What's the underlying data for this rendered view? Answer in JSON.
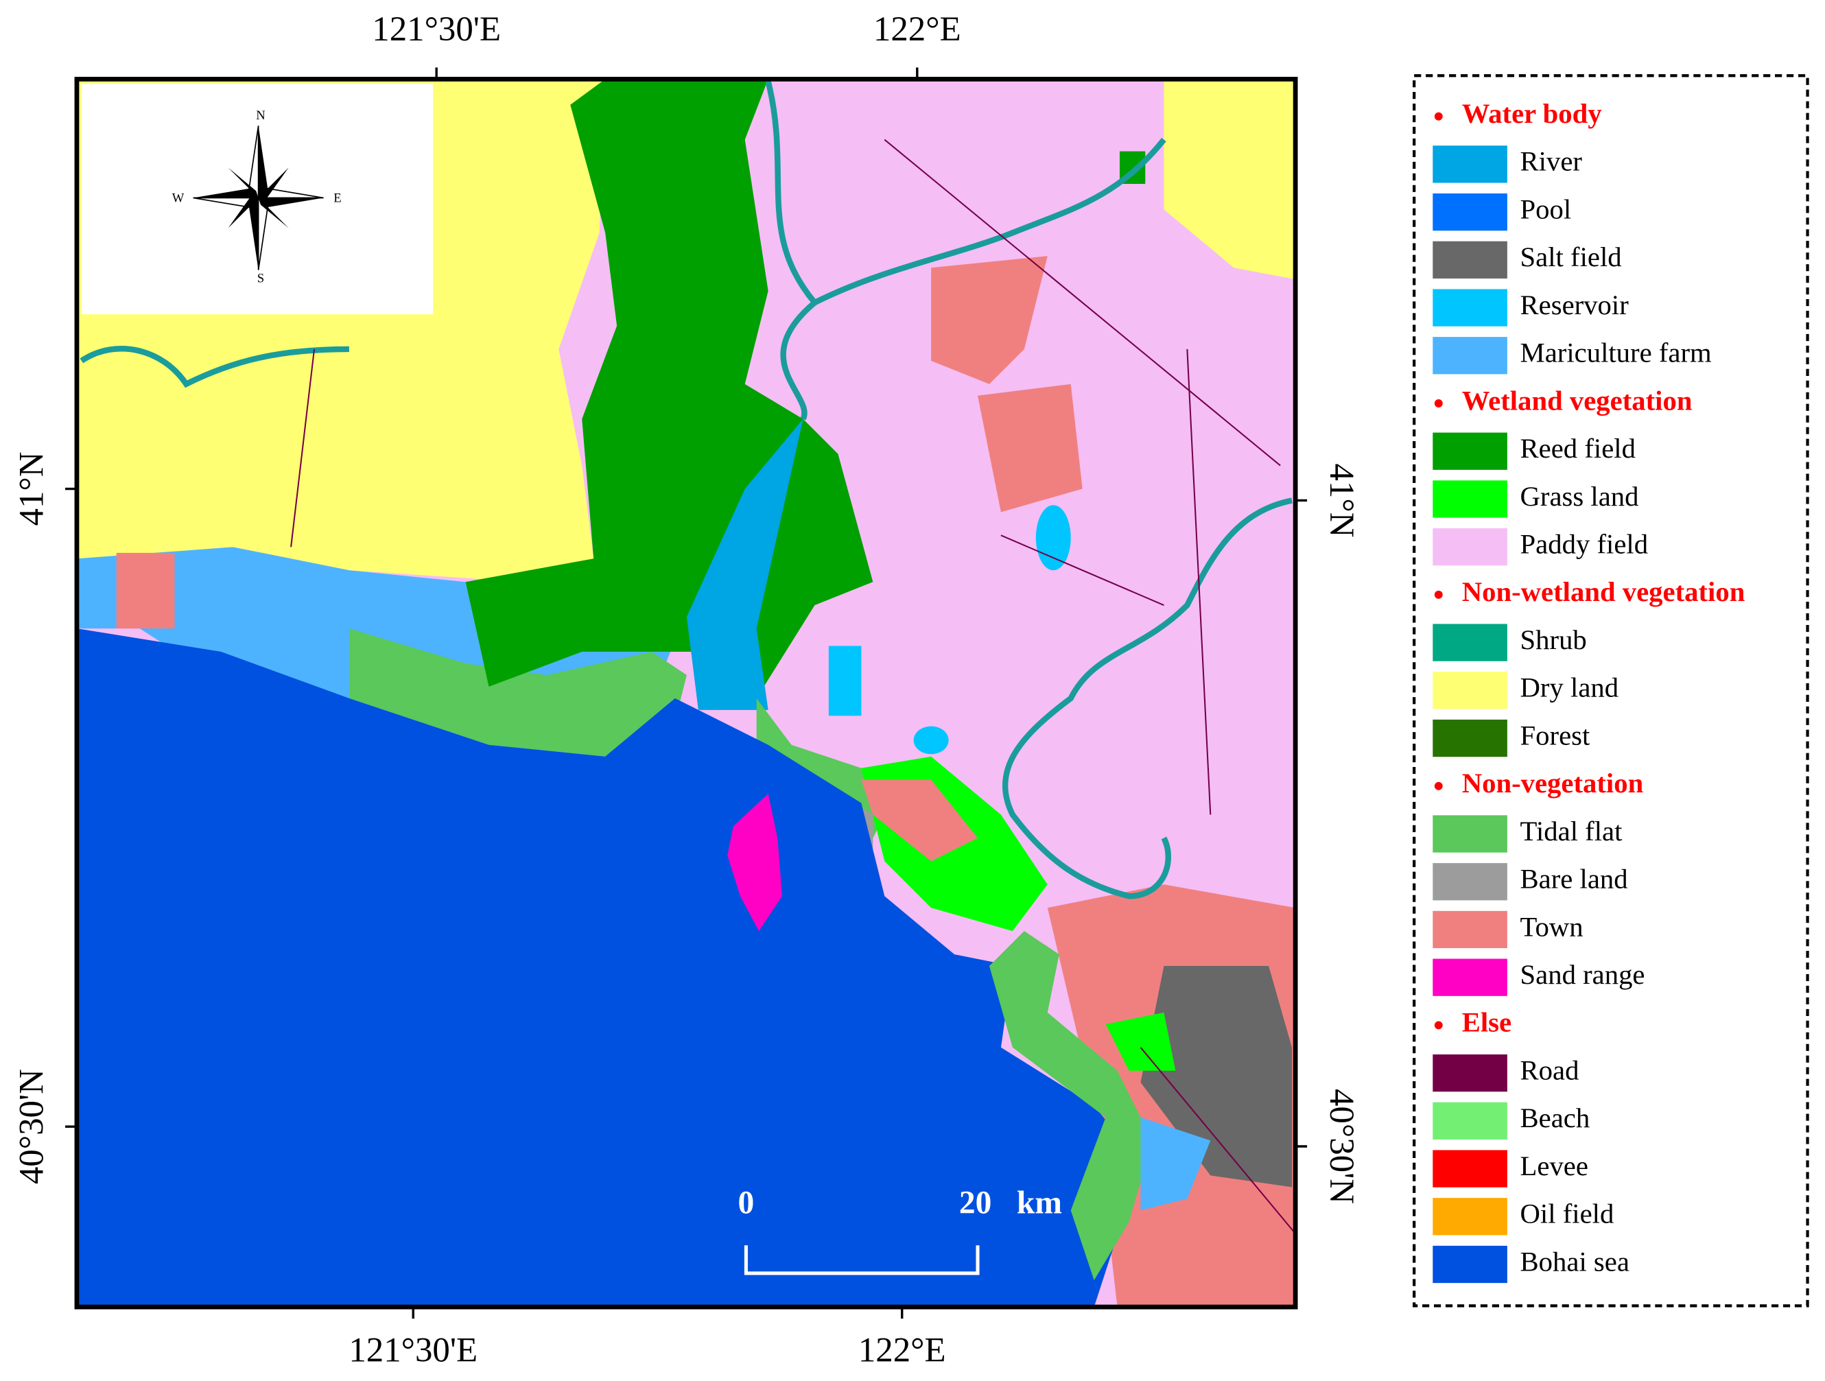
{
  "map": {
    "lon_labels_top": [
      "121°30'E",
      "122°E"
    ],
    "lon_labels_bottom": [
      "121°30'E",
      "122°E"
    ],
    "lat_labels_left": [
      "41°N",
      "40°30'N"
    ],
    "lat_labels_right": [
      "41°N",
      "40°30'N"
    ],
    "compass": {
      "n": "N",
      "e": "E",
      "s": "S",
      "w": "W"
    },
    "scale_bar": {
      "start": "0",
      "end": "20",
      "unit": "km"
    }
  },
  "legend": {
    "groups": [
      {
        "title": "Water body",
        "items": [
          {
            "label": "River",
            "color": "#00a5e3"
          },
          {
            "label": "Pool",
            "color": "#0070ff"
          },
          {
            "label": "Salt field",
            "color": "#686868"
          },
          {
            "label": "Reservoir",
            "color": "#00c5ff"
          },
          {
            "label": "Mariculture farm",
            "color": "#4db3ff"
          }
        ]
      },
      {
        "title": "Wetland vegetation",
        "items": [
          {
            "label": "Reed field",
            "color": "#00a000"
          },
          {
            "label": "Grass land",
            "color": "#00ff00"
          },
          {
            "label": "Paddy field",
            "color": "#f5bef5"
          }
        ]
      },
      {
        "title": "Non-wetland vegetation",
        "items": [
          {
            "label": "Shrub",
            "color": "#00a884"
          },
          {
            "label": "Dry land",
            "color": "#ffff73"
          },
          {
            "label": "Forest",
            "color": "#267300"
          }
        ]
      },
      {
        "title": "Non-vegetation",
        "items": [
          {
            "label": "Tidal flat",
            "color": "#5ac85a"
          },
          {
            "label": "Bare land",
            "color": "#9c9c9c"
          },
          {
            "label": "Town",
            "color": "#f08080"
          },
          {
            "label": "Sand range",
            "color": "#ff00c5"
          }
        ]
      },
      {
        "title": "Else",
        "items": [
          {
            "label": "Road",
            "color": "#730045"
          },
          {
            "label": "Beach",
            "color": "#73f073"
          },
          {
            "label": "Levee",
            "color": "#ff0000"
          },
          {
            "label": "Oil field",
            "color": "#ffaa00"
          },
          {
            "label": "Bohai sea",
            "color": "#0051e0"
          }
        ]
      }
    ]
  }
}
